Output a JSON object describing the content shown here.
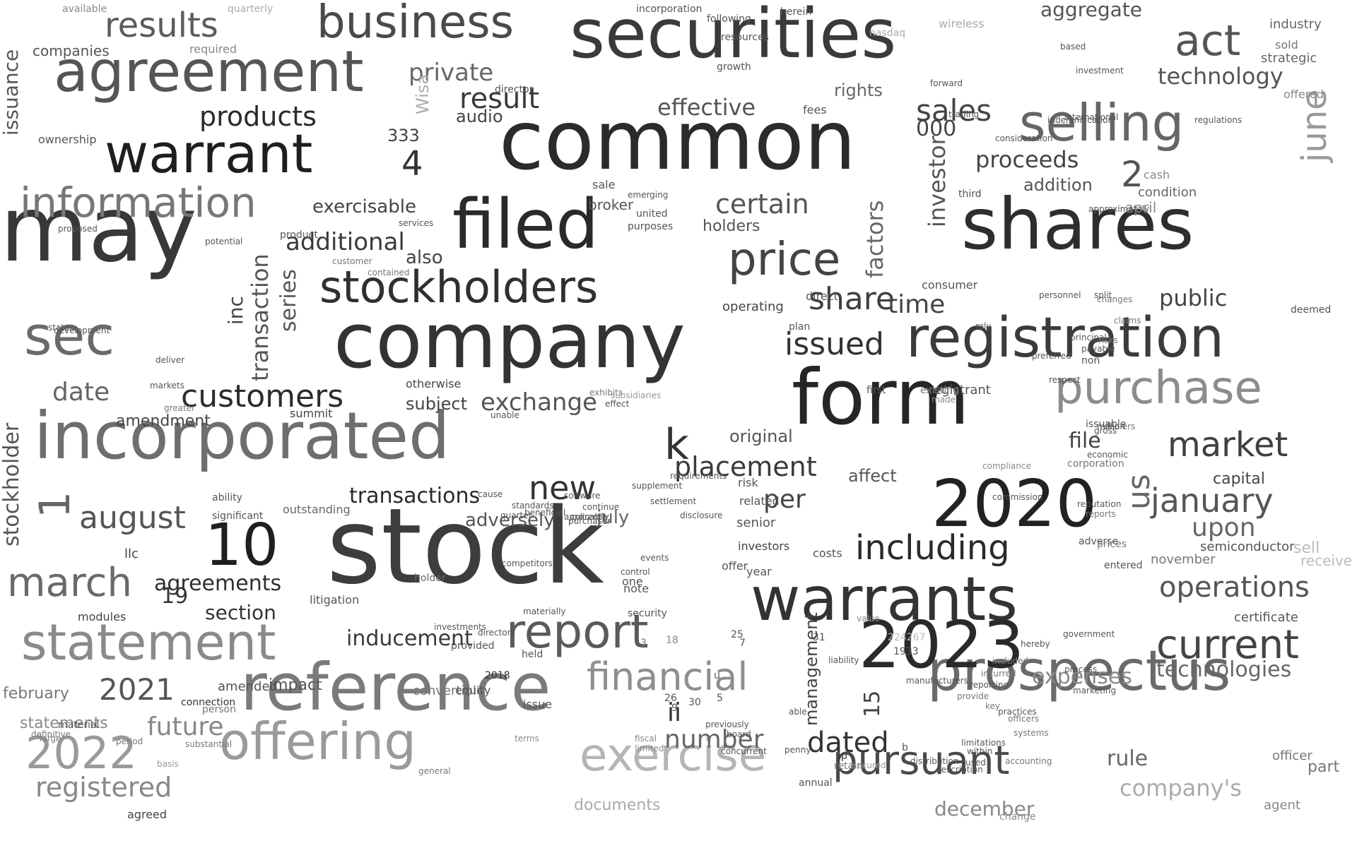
{
  "words": [
    {
      "text": "stock",
      "color": "#3d3d3d"
    },
    {
      "text": "may",
      "color": "#383838"
    },
    {
      "text": "common",
      "color": "#2b2b2b"
    },
    {
      "text": "company",
      "color": "#333333"
    },
    {
      "text": "securities",
      "color": "#3a3a3a"
    },
    {
      "text": "shares",
      "color": "#2e2e2e"
    },
    {
      "text": "form",
      "color": "#262626"
    },
    {
      "text": "incorporated",
      "color": "#6e6e6e"
    },
    {
      "text": "reference",
      "color": "#7a7a7a"
    },
    {
      "text": "warrants",
      "color": "#333333"
    },
    {
      "text": "filed",
      "color": "#2a2a2a"
    },
    {
      "text": "registration",
      "color": "#3b3b3b"
    },
    {
      "text": "prospectus",
      "color": "#6a6a6a"
    },
    {
      "text": "2020",
      "color": "#222222"
    },
    {
      "text": "2023",
      "color": "#2a2a2a"
    },
    {
      "text": "agreement",
      "color": "#555555"
    },
    {
      "text": "warrant",
      "color": "#1e1e1e"
    },
    {
      "text": "sec",
      "color": "#6a6a6a"
    },
    {
      "text": "business",
      "color": "#4a4a4a"
    },
    {
      "text": "information",
      "color": "#777777"
    },
    {
      "text": "statement",
      "color": "#8a8a8a"
    },
    {
      "text": "stockholders",
      "color": "#2f2f2f"
    },
    {
      "text": "purchase",
      "color": "#8c8c8c"
    },
    {
      "text": "selling",
      "color": "#666666"
    },
    {
      "text": "offering",
      "color": "#9a9a9a"
    },
    {
      "text": "exercise",
      "color": "#b5b5b5"
    },
    {
      "text": "price",
      "color": "#444444"
    },
    {
      "text": "report",
      "color": "#5a5a5a"
    },
    {
      "text": "financial",
      "color": "#8e8e8e"
    },
    {
      "text": "pursuant",
      "color": "#4a4a4a"
    },
    {
      "text": "current",
      "color": "#444444"
    },
    {
      "text": "market",
      "color": "#3f3f3f"
    },
    {
      "text": "including",
      "color": "#2a2a2a"
    },
    {
      "text": "customers",
      "color": "#2c2c2c"
    },
    {
      "text": "act",
      "color": "#555555"
    },
    {
      "text": "10",
      "color": "#1f1f1f"
    },
    {
      "text": "march",
      "color": "#6a6a6a"
    },
    {
      "text": "2022",
      "color": "#9a9a9a"
    },
    {
      "text": "results",
      "color": "#5c5c5c"
    },
    {
      "text": "january",
      "color": "#555555"
    },
    {
      "text": "operations",
      "color": "#555555"
    },
    {
      "text": "august",
      "color": "#555555"
    },
    {
      "text": "new",
      "color": "#333333"
    },
    {
      "text": "share",
      "color": "#3f3f3f"
    },
    {
      "text": "issued",
      "color": "#333333"
    },
    {
      "text": "placement",
      "color": "#3a3a3a"
    },
    {
      "text": "inducement",
      "color": "#3a3a3a"
    },
    {
      "text": "exchange",
      "color": "#555555"
    },
    {
      "text": "products",
      "color": "#2a2a2a"
    },
    {
      "text": "date",
      "color": "#666666"
    },
    {
      "text": "2021",
      "color": "#555555"
    },
    {
      "text": "registered",
      "color": "#888888"
    },
    {
      "text": "sales",
      "color": "#444444"
    },
    {
      "text": "proceeds",
      "color": "#444444"
    },
    {
      "text": "dated",
      "color": "#333333"
    },
    {
      "text": "future",
      "color": "#888888"
    },
    {
      "text": "time",
      "color": "#444444"
    },
    {
      "text": "certain",
      "color": "#555555"
    },
    {
      "text": "effective",
      "color": "#555555"
    },
    {
      "text": "technology",
      "color": "#555555"
    },
    {
      "text": "technologies",
      "color": "#666666"
    },
    {
      "text": "upon",
      "color": "#666666"
    },
    {
      "text": "result",
      "color": "#3a3a3a"
    },
    {
      "text": "private",
      "color": "#666666"
    },
    {
      "text": "additional",
      "color": "#3a3a3a"
    },
    {
      "text": "transactions",
      "color": "#2a2a2a"
    },
    {
      "text": "adversely",
      "color": "#555555"
    },
    {
      "text": "agreements",
      "color": "#2f2f2f"
    },
    {
      "text": "section",
      "color": "#333333"
    },
    {
      "text": "number",
      "color": "#666666"
    },
    {
      "text": "expenses",
      "color": "#888888"
    },
    {
      "text": "company's",
      "color": "#aaaaaa"
    },
    {
      "text": "december",
      "color": "#888888"
    },
    {
      "text": "file",
      "color": "#444444"
    },
    {
      "text": "public",
      "color": "#444444"
    },
    {
      "text": "capital",
      "color": "#444444"
    },
    {
      "text": "exercisable",
      "color": "#444444"
    },
    {
      "text": "aggregate",
      "color": "#555555"
    },
    {
      "text": "rule",
      "color": "#666666"
    },
    {
      "text": "part",
      "color": "#777777"
    },
    {
      "text": "statements",
      "color": "#888888"
    },
    {
      "text": "february",
      "color": "#777777"
    },
    {
      "text": "amendment",
      "color": "#444444"
    },
    {
      "text": "subject",
      "color": "#444444"
    },
    {
      "text": "original",
      "color": "#555555"
    },
    {
      "text": "per",
      "color": "#444444"
    },
    {
      "text": "affect",
      "color": "#555555"
    },
    {
      "text": "july",
      "color": "#666666"
    },
    {
      "text": "impact",
      "color": "#555555"
    },
    {
      "text": "documents",
      "color": "#aaaaaa"
    },
    {
      "text": "convertible",
      "color": "#777777"
    },
    {
      "text": "also",
      "color": "#444444"
    },
    {
      "text": "holders",
      "color": "#555555"
    },
    {
      "text": "addition",
      "color": "#555555"
    },
    {
      "text": "companies",
      "color": "#555555"
    },
    {
      "text": "fees",
      "color": "#555555"
    },
    {
      "text": "rights",
      "color": "#666666"
    },
    {
      "text": "broker",
      "color": "#555555"
    },
    {
      "text": "audio",
      "color": "#444444"
    },
    {
      "text": "333",
      "color": "#444444"
    },
    {
      "text": "000",
      "color": "#444444"
    },
    {
      "text": "k",
      "color": "#333333"
    },
    {
      "text": "ii",
      "color": "#333333"
    },
    {
      "text": "us",
      "color": "#666666"
    },
    {
      "text": "4",
      "color": "#333333"
    },
    {
      "text": "2",
      "color": "#555555"
    },
    {
      "text": "1",
      "color": "#666666"
    },
    {
      "text": "15",
      "color": "#444444"
    },
    {
      "text": "19",
      "color": "#333333"
    },
    {
      "text": "june",
      "color": "#999999"
    },
    {
      "text": "investor",
      "color": "#555555"
    },
    {
      "text": "transaction",
      "color": "#555555"
    },
    {
      "text": "series",
      "color": "#555555"
    },
    {
      "text": "inc",
      "color": "#444444"
    },
    {
      "text": "stockholder",
      "color": "#555555"
    },
    {
      "text": "factors",
      "color": "#666666"
    },
    {
      "text": "management",
      "color": "#444444"
    },
    {
      "text": "issuance",
      "color": "#555555"
    },
    {
      "text": "Wisa",
      "color": "#aaaaaa"
    },
    {
      "text": "sell",
      "color": "#bbbbbb"
    },
    {
      "text": "receive",
      "color": "#bbbbbb"
    },
    {
      "text": "certificate",
      "color": "#555555"
    },
    {
      "text": "semiconductor",
      "color": "#555555"
    },
    {
      "text": "november",
      "color": "#777777"
    },
    {
      "text": "officer",
      "color": "#777777"
    },
    {
      "text": "agent",
      "color": "#888888"
    },
    {
      "text": "condition",
      "color": "#666666"
    },
    {
      "text": "april",
      "color": "#888888"
    },
    {
      "text": "cash",
      "color": "#888888"
    },
    {
      "text": "industry",
      "color": "#666666"
    },
    {
      "text": "strategic",
      "color": "#666666"
    },
    {
      "text": "offered",
      "color": "#888888"
    },
    {
      "text": "sold",
      "color": "#777777"
    },
    {
      "text": "registrant",
      "color": "#555555"
    },
    {
      "text": "consumer",
      "color": "#555555"
    },
    {
      "text": "direct",
      "color": "#555555"
    },
    {
      "text": "plan",
      "color": "#555555"
    },
    {
      "text": "operating",
      "color": "#444444"
    },
    {
      "text": "deemed",
      "color": "#555555"
    },
    {
      "text": "senior",
      "color": "#555555"
    },
    {
      "text": "related",
      "color": "#555555"
    },
    {
      "text": "investors",
      "color": "#444444"
    },
    {
      "text": "risk",
      "color": "#555555"
    },
    {
      "text": "costs",
      "color": "#555555"
    },
    {
      "text": "year",
      "color": "#555555"
    },
    {
      "text": "offer",
      "color": "#555555"
    },
    {
      "text": "one",
      "color": "#555555"
    },
    {
      "text": "note",
      "color": "#555555"
    },
    {
      "text": "issue",
      "color": "#555555"
    },
    {
      "text": "provided",
      "color": "#555555"
    },
    {
      "text": "2018",
      "color": "#333333"
    },
    {
      "text": "equity",
      "color": "#555555"
    },
    {
      "text": "held",
      "color": "#555555"
    },
    {
      "text": "amended",
      "color": "#555555"
    },
    {
      "text": "person",
      "color": "#777777"
    },
    {
      "text": "connection",
      "color": "#333333"
    },
    {
      "text": "agreed",
      "color": "#444444"
    },
    {
      "text": "modules",
      "color": "#444444"
    },
    {
      "text": "llc",
      "color": "#444444"
    },
    {
      "text": "outstanding",
      "color": "#666666"
    },
    {
      "text": "summit",
      "color": "#444444"
    },
    {
      "text": "otherwise",
      "color": "#444444"
    },
    {
      "text": "litigation",
      "color": "#555555"
    },
    {
      "text": "significant",
      "color": "#555555"
    },
    {
      "text": "ability",
      "color": "#555555"
    },
    {
      "text": "holder",
      "color": "#666666"
    },
    {
      "text": "material",
      "color": "#555555"
    },
    {
      "text": "ownership",
      "color": "#555555"
    },
    {
      "text": "required",
      "color": "#888888"
    },
    {
      "text": "available",
      "color": "#888888"
    },
    {
      "text": "quarterly",
      "color": "#aaaaaa"
    },
    {
      "text": "incorporation",
      "color": "#555555"
    },
    {
      "text": "following",
      "color": "#555555"
    },
    {
      "text": "herein",
      "color": "#555555"
    },
    {
      "text": "sale",
      "color": "#555555"
    },
    {
      "text": "wireless",
      "color": "#aaaaaa"
    },
    {
      "text": "nasdaq",
      "color": "#aaaaaa"
    },
    {
      "text": "director",
      "color": "#555555"
    },
    {
      "text": "resources",
      "color": "#555555"
    },
    {
      "text": "growth",
      "color": "#555555"
    },
    {
      "text": "third",
      "color": "#555555"
    },
    {
      "text": "forward",
      "color": "#555555"
    },
    {
      "text": "purposes",
      "color": "#555555"
    },
    {
      "text": "united",
      "color": "#555555"
    },
    {
      "text": "emerging",
      "color": "#555555"
    },
    {
      "text": "product",
      "color": "#555555"
    },
    {
      "text": "services",
      "color": "#555555"
    },
    {
      "text": "proposed",
      "color": "#555555"
    },
    {
      "text": "customer",
      "color": "#777777"
    },
    {
      "text": "contained",
      "color": "#777777"
    },
    {
      "text": "potential",
      "color": "#555555"
    },
    {
      "text": "states",
      "color": "#555555"
    },
    {
      "text": "development",
      "color": "#555555"
    },
    {
      "text": "deliver",
      "color": "#555555"
    },
    {
      "text": "markets",
      "color": "#555555"
    },
    {
      "text": "greater",
      "color": "#777777"
    },
    {
      "text": "unable",
      "color": "#555555"
    },
    {
      "text": "exhibits",
      "color": "#777777"
    },
    {
      "text": "subsidiaries",
      "color": "#999999"
    },
    {
      "text": "effect",
      "color": "#555555"
    },
    {
      "text": "non",
      "color": "#555555"
    },
    {
      "text": "issuable",
      "color": "#555555"
    },
    {
      "text": "first",
      "color": "#555555"
    },
    {
      "text": "existing",
      "color": "#777777"
    },
    {
      "text": "corporation",
      "color": "#777777"
    },
    {
      "text": "adverse",
      "color": "#555555"
    },
    {
      "text": "entered",
      "color": "#555555"
    },
    {
      "text": "prices",
      "color": "#777777"
    },
    {
      "text": "changes",
      "color": "#777777"
    },
    {
      "text": "dealers",
      "color": "#777777"
    },
    {
      "text": "provide",
      "color": "#777777"
    },
    {
      "text": "reporting",
      "color": "#555555"
    },
    {
      "text": "previously",
      "color": "#555555"
    },
    {
      "text": "board",
      "color": "#555555"
    },
    {
      "text": "concurrent",
      "color": "#555555"
    },
    {
      "text": "able",
      "color": "#555555"
    },
    {
      "text": "liability",
      "color": "#555555"
    },
    {
      "text": "penny",
      "color": "#555555"
    },
    {
      "text": "distribution",
      "color": "#555555"
    },
    {
      "text": "manufacturers",
      "color": "#555555"
    },
    {
      "text": "annual",
      "color": "#555555"
    },
    {
      "text": "accounting",
      "color": "#777777"
    },
    {
      "text": "systems",
      "color": "#777777"
    },
    {
      "text": "officers",
      "color": "#777777"
    },
    {
      "text": "general",
      "color": "#777777"
    },
    {
      "text": "change",
      "color": "#888888"
    },
    {
      "text": "secured",
      "color": "#999999"
    },
    {
      "text": "fiscal",
      "color": "#888888"
    },
    {
      "text": "limited",
      "color": "#888888"
    },
    {
      "text": "terms",
      "color": "#888888"
    },
    {
      "text": "value",
      "color": "#888888"
    },
    {
      "text": "made",
      "color": "#888888"
    },
    {
      "text": "supplement",
      "color": "#555555"
    },
    {
      "text": "requirements",
      "color": "#555555"
    },
    {
      "text": "disclosure",
      "color": "#555555"
    },
    {
      "text": "standards",
      "color": "#555555"
    },
    {
      "text": "beneficial",
      "color": "#555555"
    },
    {
      "text": "currently",
      "color": "#555555"
    },
    {
      "text": "applicable",
      "color": "#555555"
    },
    {
      "text": "settlement",
      "color": "#555555"
    },
    {
      "text": "events",
      "color": "#555555"
    },
    {
      "text": "security",
      "color": "#555555"
    },
    {
      "text": "purchaser",
      "color": "#555555"
    },
    {
      "text": "software",
      "color": "#555555"
    },
    {
      "text": "control",
      "color": "#555555"
    },
    {
      "text": "continue",
      "color": "#555555"
    },
    {
      "text": "quarter",
      "color": "#555555"
    },
    {
      "text": "cause",
      "color": "#555555"
    },
    {
      "text": "materially",
      "color": "#555555"
    },
    {
      "text": "competitors",
      "color": "#555555"
    },
    {
      "text": "directors",
      "color": "#555555"
    },
    {
      "text": "investments",
      "color": "#555555"
    },
    {
      "text": "payable",
      "color": "#555555"
    },
    {
      "text": "preferred",
      "color": "#555555"
    },
    {
      "text": "regulations",
      "color": "#555555"
    },
    {
      "text": "international",
      "color": "#555555"
    },
    {
      "text": "trading",
      "color": "#555555"
    },
    {
      "text": "investment",
      "color": "#555555"
    },
    {
      "text": "based",
      "color": "#555555"
    },
    {
      "text": "approximately",
      "color": "#555555"
    },
    {
      "text": "indemnification",
      "color": "#555555"
    },
    {
      "text": "consideration",
      "color": "#555555"
    },
    {
      "text": "personnel",
      "color": "#555555"
    },
    {
      "text": "respect",
      "color": "#555555"
    },
    {
      "text": "claims",
      "color": "#777777"
    },
    {
      "text": "principal",
      "color": "#555555"
    },
    {
      "text": "rely",
      "color": "#555555"
    },
    {
      "text": "split",
      "color": "#555555"
    },
    {
      "text": "risks",
      "color": "#777777"
    },
    {
      "text": "million",
      "color": "#555555"
    },
    {
      "text": "gross",
      "color": "#555555"
    },
    {
      "text": "economic",
      "color": "#555555"
    },
    {
      "text": "compliance",
      "color": "#888888"
    },
    {
      "text": "commission",
      "color": "#555555"
    },
    {
      "text": "reputation",
      "color": "#555555"
    },
    {
      "text": "reports",
      "color": "#777777"
    },
    {
      "text": "government",
      "color": "#555555"
    },
    {
      "text": "hereby",
      "color": "#555555"
    },
    {
      "text": "incurred",
      "color": "#777777"
    },
    {
      "text": "included",
      "color": "#777777"
    },
    {
      "text": "key",
      "color": "#777777"
    },
    {
      "text": "process",
      "color": "#555555"
    },
    {
      "text": "practices",
      "color": "#555555"
    },
    {
      "text": "marketing",
      "color": "#555555"
    },
    {
      "text": "limitations",
      "color": "#555555"
    },
    {
      "text": "within",
      "color": "#555555"
    },
    {
      "text": "used",
      "color": "#555555"
    },
    {
      "text": "description",
      "color": "#555555"
    },
    {
      "text": "substantial",
      "color": "#777777"
    },
    {
      "text": "basis",
      "color": "#999999"
    },
    {
      "text": "period",
      "color": "#777777"
    },
    {
      "text": "large",
      "color": "#777777"
    },
    {
      "text": "definitive",
      "color": "#777777"
    },
    {
      "text": "retain",
      "color": "#777777"
    },
    {
      "text": "ip",
      "color": "#333333"
    },
    {
      "text": "b",
      "color": "#555555"
    },
    {
      "text": "u",
      "color": "#555555"
    },
    {
      "text": "5",
      "color": "#555555"
    },
    {
      "text": "26",
      "color": "#555555"
    },
    {
      "text": "9",
      "color": "#555555"
    },
    {
      "text": "31",
      "color": "#555555"
    },
    {
      "text": "25",
      "color": "#555555"
    },
    {
      "text": "7",
      "color": "#555555"
    },
    {
      "text": "30",
      "color": "#555555"
    },
    {
      "text": "18",
      "color": "#888888"
    },
    {
      "text": "3",
      "color": "#777777"
    },
    {
      "text": "224267",
      "color": "#bbbbbb"
    },
    {
      "text": "1933",
      "color": "#555555"
    },
    {
      "text": "∞",
      "color": "#555555"
    }
  ]
}
